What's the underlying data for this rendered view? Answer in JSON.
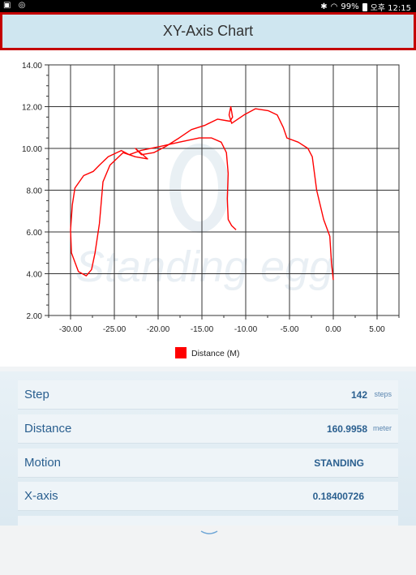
{
  "status_bar": {
    "left_icons": "▣ ◎",
    "battery": "99%",
    "time": "오후 12:15"
  },
  "header": {
    "title": "XY-Axis Chart"
  },
  "chart_data": {
    "type": "line",
    "title": "",
    "xlabel": "",
    "ylabel": "",
    "xlim": [
      -32.5,
      7.5
    ],
    "ylim": [
      2.0,
      14.0
    ],
    "x_ticks": [
      "-30.00",
      "-25.00",
      "-20.00",
      "-15.00",
      "-10.00",
      "-5.00",
      "0.00",
      "5.00"
    ],
    "y_ticks": [
      "2.00",
      "4.00",
      "6.00",
      "8.00",
      "10.00",
      "12.00",
      "14.00"
    ],
    "grid": true,
    "legend_position": "bottom",
    "series": [
      {
        "name": "Distance (M)",
        "color": "#ff0000",
        "points": [
          [
            0.0,
            3.7
          ],
          [
            -0.2,
            4.5
          ],
          [
            -0.4,
            5.8
          ],
          [
            -1.1,
            6.6
          ],
          [
            -1.9,
            8.0
          ],
          [
            -2.4,
            9.6
          ],
          [
            -2.9,
            10.0
          ],
          [
            -4.0,
            10.3
          ],
          [
            -5.3,
            10.5
          ],
          [
            -5.7,
            11.0
          ],
          [
            -6.4,
            11.6
          ],
          [
            -7.4,
            11.8
          ],
          [
            -8.9,
            11.9
          ],
          [
            -10.2,
            11.6
          ],
          [
            -11.6,
            11.2
          ],
          [
            -11.9,
            11.6
          ],
          [
            -11.7,
            12.0
          ],
          [
            -11.5,
            11.5
          ],
          [
            -11.8,
            11.3
          ],
          [
            -13.2,
            11.4
          ],
          [
            -14.7,
            11.1
          ],
          [
            -16.2,
            10.9
          ],
          [
            -17.6,
            10.5
          ],
          [
            -19.1,
            10.1
          ],
          [
            -20.5,
            9.8
          ],
          [
            -21.9,
            9.7
          ],
          [
            -22.6,
            10.0
          ],
          [
            -21.2,
            9.5
          ],
          [
            -22.6,
            9.6
          ],
          [
            -24.0,
            9.8
          ],
          [
            -25.5,
            9.2
          ],
          [
            -26.3,
            8.4
          ],
          [
            -26.7,
            6.4
          ],
          [
            -27.2,
            5.0
          ],
          [
            -27.6,
            4.2
          ],
          [
            -28.2,
            3.9
          ],
          [
            -29.1,
            4.1
          ],
          [
            -29.9,
            5.0
          ],
          [
            -30.0,
            6.1
          ],
          [
            -29.8,
            7.3
          ],
          [
            -29.5,
            8.1
          ],
          [
            -28.5,
            8.7
          ],
          [
            -27.4,
            8.9
          ],
          [
            -26.7,
            9.2
          ],
          [
            -25.7,
            9.6
          ],
          [
            -24.2,
            9.9
          ],
          [
            -23.3,
            9.7
          ],
          [
            -22.0,
            9.9
          ],
          [
            -19.7,
            10.1
          ],
          [
            -17.6,
            10.3
          ],
          [
            -15.3,
            10.5
          ],
          [
            -13.9,
            10.5
          ],
          [
            -12.8,
            10.3
          ],
          [
            -12.2,
            9.8
          ],
          [
            -12.0,
            8.8
          ],
          [
            -12.1,
            7.6
          ],
          [
            -12.0,
            6.6
          ],
          [
            -11.6,
            6.3
          ],
          [
            -11.1,
            6.1
          ]
        ]
      }
    ]
  },
  "info": {
    "step": {
      "label": "Step",
      "value": "142",
      "unit": "steps"
    },
    "distance": {
      "label": "Distance",
      "value": "160.9958",
      "unit": "meter"
    },
    "motion": {
      "label": "Motion",
      "value": "STANDING"
    },
    "x_axis": {
      "label": "X-axis",
      "value": "0.18400726"
    }
  },
  "colors": {
    "accent": "#2a5f8f",
    "title_bar": "#cfe6f0",
    "highlight_border": "#c40000"
  }
}
